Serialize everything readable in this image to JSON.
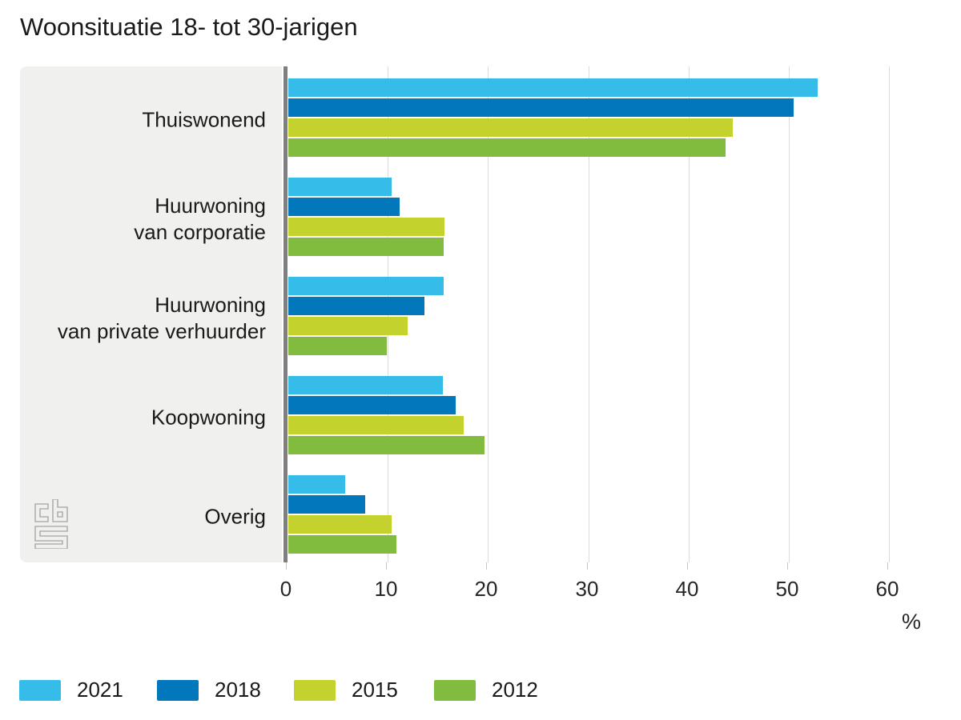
{
  "title": "Woonsituatie 18- tot 30-jarigen",
  "chart_data": {
    "type": "bar",
    "orientation": "horizontal",
    "title": "Woonsituatie 18- tot 30-jarigen",
    "categories": [
      "Thuiswonend",
      "Huurwoning van corporatie",
      "Huurwoning van private verhuurder",
      "Koopwoning",
      "Overig"
    ],
    "category_lines": [
      [
        "Thuiswonend"
      ],
      [
        "Huurwoning",
        "van corporatie"
      ],
      [
        "Huurwoning",
        "van private verhuurder"
      ],
      [
        "Koopwoning"
      ],
      [
        "Overig"
      ]
    ],
    "series": [
      {
        "name": "2021",
        "color": "#35bce8",
        "values": [
          52.8,
          10.3,
          15.5,
          15.4,
          5.7
        ]
      },
      {
        "name": "2018",
        "color": "#0377bc",
        "values": [
          50.4,
          11.1,
          13.6,
          16.7,
          7.7
        ]
      },
      {
        "name": "2015",
        "color": "#c4d22e",
        "values": [
          44.3,
          15.6,
          11.9,
          17.5,
          10.3
        ]
      },
      {
        "name": "2012",
        "color": "#82bc3e",
        "values": [
          43.6,
          15.5,
          9.8,
          19.6,
          10.8
        ]
      }
    ],
    "xlabel": "%",
    "xlim": [
      0,
      63
    ],
    "xticks": [
      0,
      10,
      20,
      30,
      40,
      50,
      60
    ],
    "xtick_labels": [
      "0",
      "10",
      "20",
      "30",
      "40",
      "50",
      "60"
    ],
    "grid": true,
    "legend_position": "bottom",
    "bar_unit": "percent"
  },
  "logo": {
    "name": "cbs-logo",
    "color": "#b0b0b0"
  },
  "colors": {
    "panel_background": "#f0f0ef",
    "axis_line": "#7f7f7f",
    "gridline": "#dcdcdc",
    "text": "#1a1a1a"
  }
}
